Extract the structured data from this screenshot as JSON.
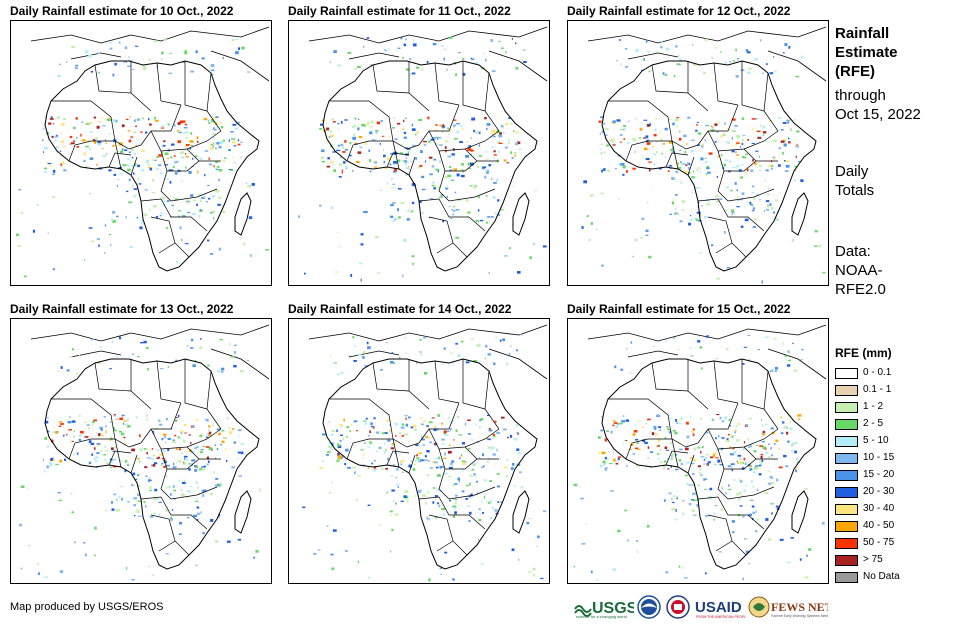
{
  "panels": [
    {
      "title": "Daily Rainfall estimate for 10 Oct., 2022"
    },
    {
      "title": "Daily Rainfall estimate for 11 Oct., 2022"
    },
    {
      "title": "Daily Rainfall estimate for 12 Oct., 2022"
    },
    {
      "title": "Daily Rainfall estimate for 13 Oct., 2022"
    },
    {
      "title": "Daily Rainfall estimate for 14 Oct., 2022"
    },
    {
      "title": "Daily Rainfall estimate for 15 Oct., 2022"
    }
  ],
  "sidebar": {
    "heading_lines": [
      "Rainfall",
      "Estimate",
      "(RFE)"
    ],
    "through_lines": [
      "through",
      "Oct 15, 2022"
    ],
    "totals_lines": [
      "Daily",
      "Totals"
    ],
    "data_lines": [
      "Data:",
      "NOAA-",
      "RFE2.0"
    ]
  },
  "legend": {
    "title": "RFE (mm)",
    "items": [
      {
        "label": "0 - 0.1",
        "color": "#ffffff"
      },
      {
        "label": "0.1 - 1",
        "color": "#e8d3b0"
      },
      {
        "label": "1 - 2",
        "color": "#c6f0b0"
      },
      {
        "label": "2 - 5",
        "color": "#66d966"
      },
      {
        "label": "5 - 10",
        "color": "#b4ecf8"
      },
      {
        "label": "10 - 15",
        "color": "#7fb7ee"
      },
      {
        "label": "15 - 20",
        "color": "#4a94e8"
      },
      {
        "label": "20 - 30",
        "color": "#1f5fe0"
      },
      {
        "label": "30 - 40",
        "color": "#ffe580"
      },
      {
        "label": "40 - 50",
        "color": "#ffa500"
      },
      {
        "label": "50 - 75",
        "color": "#ff3300"
      },
      {
        "label": "> 75",
        "color": "#a82020"
      },
      {
        "label": "No Data",
        "color": "#999999"
      }
    ]
  },
  "credit": "Map produced by USGS/EROS",
  "logos": [
    {
      "text": "USGS",
      "icon": "usgs-logo"
    },
    {
      "text": "",
      "icon": "noaa-seal"
    },
    {
      "text": "",
      "icon": "usaid-seal"
    },
    {
      "text": "USAID",
      "icon": "usaid-logo"
    },
    {
      "text": "FEWS NET",
      "icon": "fewsnet-logo"
    }
  ]
}
